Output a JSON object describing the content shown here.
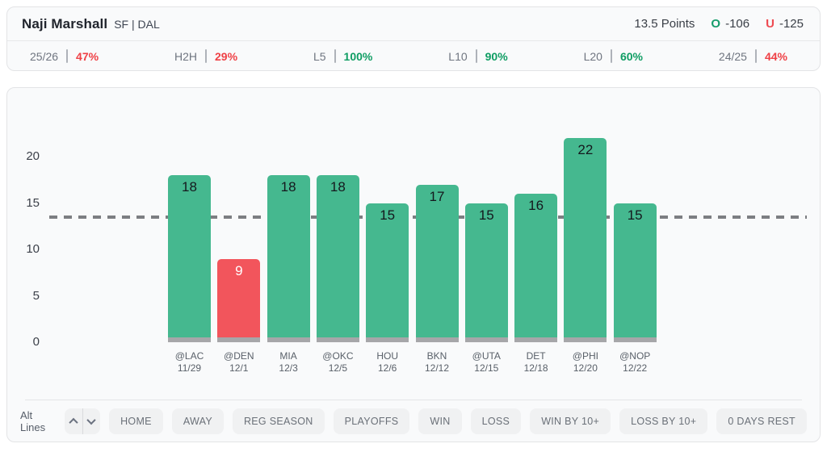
{
  "header": {
    "player_name": "Naji Marshall",
    "player_meta": "SF | DAL",
    "prop_line": "13.5 Points",
    "over_label": "O",
    "over_odds": "-106",
    "under_label": "U",
    "under_odds": "-125"
  },
  "stats": [
    {
      "label": "25/26",
      "value": "47%",
      "color": "red"
    },
    {
      "label": "H2H",
      "value": "29%",
      "color": "red"
    },
    {
      "label": "L5",
      "value": "100%",
      "color": "green"
    },
    {
      "label": "L10",
      "value": "90%",
      "color": "green"
    },
    {
      "label": "L20",
      "value": "60%",
      "color": "green"
    },
    {
      "label": "24/25",
      "value": "44%",
      "color": "red"
    }
  ],
  "chart_data": {
    "type": "bar",
    "title": "",
    "ylabel": "",
    "xlabel": "",
    "ylim": [
      0,
      24
    ],
    "yticks": [
      0,
      5,
      10,
      15,
      20
    ],
    "grid": false,
    "prop_line_value": 13.5,
    "games": [
      {
        "opponent": "@LAC",
        "date": "11/29",
        "value": 18,
        "result": "over"
      },
      {
        "opponent": "@DEN",
        "date": "12/1",
        "value": 9,
        "result": "under"
      },
      {
        "opponent": "MIA",
        "date": "12/3",
        "value": 18,
        "result": "over"
      },
      {
        "opponent": "@OKC",
        "date": "12/5",
        "value": 18,
        "result": "over"
      },
      {
        "opponent": "HOU",
        "date": "12/6",
        "value": 15,
        "result": "over"
      },
      {
        "opponent": "BKN",
        "date": "12/12",
        "value": 17,
        "result": "over"
      },
      {
        "opponent": "@UTA",
        "date": "12/15",
        "value": 15,
        "result": "over"
      },
      {
        "opponent": "DET",
        "date": "12/18",
        "value": 16,
        "result": "over"
      },
      {
        "opponent": "@PHI",
        "date": "12/20",
        "value": 22,
        "result": "over"
      },
      {
        "opponent": "@NOP",
        "date": "12/22",
        "value": 15,
        "result": "over"
      }
    ]
  },
  "toolbar": {
    "alt_lines_label": "Alt Lines",
    "filters": [
      "HOME",
      "AWAY",
      "REG SEASON",
      "PLAYOFFS",
      "WIN",
      "LOSS",
      "WIN BY 10+",
      "LOSS BY 10+",
      "0 DAYS REST"
    ]
  },
  "colors": {
    "over_bar": "#45b88f",
    "under_bar": "#f2555c",
    "bar_base": "#a6a6a9",
    "over_value_text": "#15181d",
    "under_value_text": "#ffffff",
    "dash_line": "#7c7e82",
    "green_text": "#0f9d63",
    "red_text": "#ef4146"
  }
}
